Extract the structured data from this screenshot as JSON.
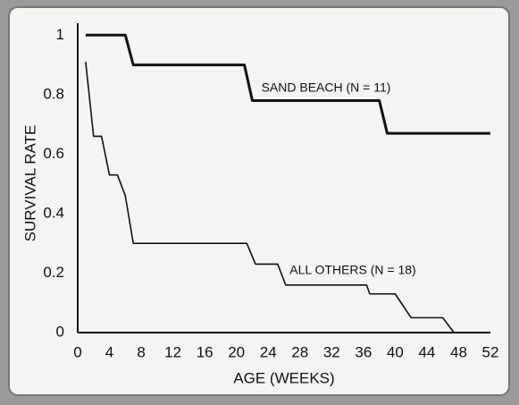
{
  "chart_data": {
    "type": "line",
    "x_label": "AGE (WEEKS)",
    "y_label": "SURVIVAL RATE",
    "series": [
      {
        "name": "SAND BEACH (N = 11)",
        "color": "#111111",
        "x": [
          1,
          6,
          7,
          21,
          22,
          38,
          39,
          52
        ],
        "values": [
          1,
          1,
          0.9,
          0.9,
          0.78,
          0.78,
          0.67,
          0.67
        ]
      },
      {
        "name": "ALL OTHERS (N = 18)",
        "color": "#111111",
        "x": [
          1,
          2,
          3,
          4,
          5,
          6,
          7,
          21.3,
          22.4,
          25.2,
          26.2,
          36.4,
          36.8,
          40,
          42,
          46,
          47.4,
          52
        ],
        "values": [
          0.91,
          0.66,
          0.66,
          0.53,
          0.53,
          0.46,
          0.3,
          0.3,
          0.23,
          0.23,
          0.16,
          0.16,
          0.13,
          0.13,
          0.05,
          0.05,
          0,
          0
        ]
      }
    ],
    "xlim": [
      0,
      52
    ],
    "xticks": [
      0,
      4,
      8,
      12,
      16,
      20,
      24,
      28,
      32,
      36,
      40,
      44,
      48,
      52
    ],
    "ylim": [
      0,
      1.04
    ],
    "yticks": [
      0,
      0.2,
      0.4,
      0.6,
      0.8,
      1
    ],
    "grid": false
  }
}
